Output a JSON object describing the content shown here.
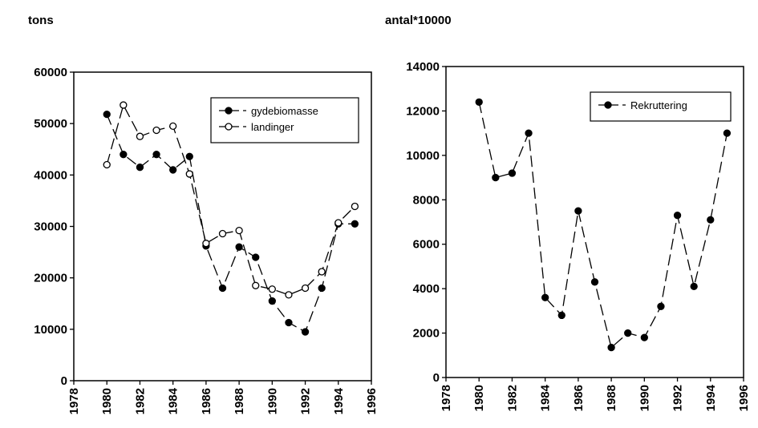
{
  "chart_data": [
    {
      "type": "line",
      "title": "tons",
      "x": [
        1980,
        1981,
        1982,
        1983,
        1984,
        1985,
        1986,
        1987,
        1988,
        1989,
        1990,
        1991,
        1992,
        1993,
        1994,
        1995
      ],
      "series": [
        {
          "name": "gydebiomasse",
          "color": "#000000",
          "marker": "filled",
          "values": [
            51800,
            44000,
            41500,
            44000,
            41000,
            43600,
            26200,
            18000,
            26000,
            24000,
            15500,
            11300,
            9500,
            18000,
            30500,
            30500
          ]
        },
        {
          "name": "landinger",
          "color": "#000000",
          "marker": "open",
          "values": [
            42000,
            53600,
            47500,
            48700,
            49500,
            40200,
            26700,
            28600,
            29200,
            18500,
            17800,
            16700,
            18000,
            21200,
            30700,
            33900
          ]
        }
      ],
      "xlim": [
        1978,
        1996
      ],
      "xticks": [
        1978,
        1980,
        1982,
        1984,
        1986,
        1988,
        1990,
        1992,
        1994,
        1996
      ],
      "ylim": [
        0,
        60000
      ],
      "yticks": [
        0,
        10000,
        20000,
        30000,
        40000,
        50000,
        60000
      ],
      "legend": "upper right"
    },
    {
      "type": "line",
      "title": "antal*10000",
      "x": [
        1980,
        1981,
        1982,
        1983,
        1984,
        1985,
        1986,
        1987,
        1988,
        1989,
        1990,
        1991,
        1992,
        1993,
        1994,
        1995
      ],
      "series": [
        {
          "name": "Rekruttering",
          "color": "#000000",
          "marker": "filled",
          "values": [
            12400,
            9000,
            9200,
            11000,
            3600,
            2800,
            7500,
            4300,
            1350,
            2000,
            1800,
            3200,
            7300,
            4100,
            7100,
            11000
          ]
        }
      ],
      "xlim": [
        1978,
        1996
      ],
      "xticks": [
        1978,
        1980,
        1982,
        1984,
        1986,
        1988,
        1990,
        1992,
        1994,
        1996
      ],
      "ylim": [
        0,
        14000
      ],
      "yticks": [
        0,
        2000,
        4000,
        6000,
        8000,
        10000,
        12000,
        14000
      ],
      "legend": "upper right"
    }
  ]
}
